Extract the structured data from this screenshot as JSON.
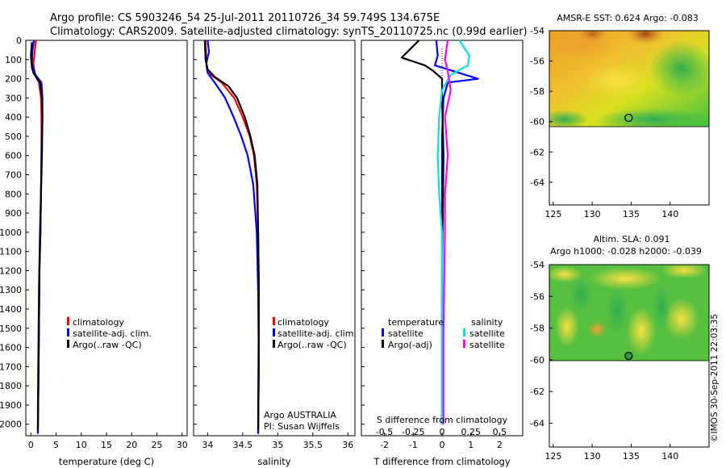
{
  "header": {
    "line1": "Argo profile: CS 5903246_54 25-Jul-2011 20110726_34 59.749S 134.675E",
    "line2": "Climatology: CARS2009. Satellite-adjusted climatology: synTS_20110725.nc (0.99d earlier)"
  },
  "colors": {
    "climatology": "#ff0000",
    "satellite": "#0000ff",
    "argo": "#000000",
    "satellite_salinity": "#00e5e5",
    "argo_salinity": "#ff00ff"
  },
  "chart_data": [
    {
      "type": "line",
      "panel": "temperature",
      "xlabel": "temperature (deg C)",
      "xlim": [
        -1,
        31
      ],
      "ylim": [
        2060,
        0
      ],
      "xticks": [
        "0",
        "5",
        "10",
        "15",
        "20",
        "25",
        "30"
      ],
      "yticks": [
        "0",
        "100",
        "200",
        "300",
        "400",
        "500",
        "600",
        "700",
        "800",
        "900",
        "1000",
        "1100",
        "1200",
        "1300",
        "1400",
        "1500",
        "1600",
        "1700",
        "1800",
        "1900",
        "2000"
      ],
      "legend": [
        "climatology",
        "satellite-adj. clim.",
        "Argo(..raw -QC)"
      ],
      "series": [
        {
          "name": "climatology",
          "color": "climatology",
          "x": [
            1.0,
            0.8,
            0.5,
            0.8,
            1.6,
            2.0,
            2.1,
            2.1,
            2.0,
            1.9,
            1.7,
            1.6,
            1.5,
            1.4,
            1.4
          ],
          "y": [
            0,
            50,
            120,
            180,
            220,
            300,
            400,
            600,
            800,
            1000,
            1200,
            1500,
            1800,
            2000,
            2050
          ]
        },
        {
          "name": "satellite-adj. clim.",
          "color": "satellite",
          "x": [
            0.6,
            0.3,
            0.2,
            0.9,
            2.1,
            2.3,
            2.3,
            2.1,
            2.0,
            1.8,
            1.6,
            1.5,
            1.4,
            1.4
          ],
          "y": [
            0,
            60,
            120,
            180,
            220,
            300,
            400,
            600,
            800,
            1000,
            1300,
            1600,
            1900,
            2050
          ]
        },
        {
          "name": "Argo(..raw -QC)",
          "color": "argo",
          "x": [
            0.2,
            0.0,
            0.2,
            0.5,
            1.8,
            2.2,
            2.3,
            2.2,
            2.0,
            1.9,
            1.7,
            1.6,
            1.5,
            1.4
          ],
          "y": [
            10,
            80,
            140,
            170,
            220,
            300,
            400,
            600,
            800,
            1000,
            1200,
            1500,
            1800,
            2030
          ]
        }
      ]
    },
    {
      "type": "line",
      "panel": "salinity",
      "xlabel": "salinity",
      "xlim": [
        33.8,
        36.1
      ],
      "ylim": [
        2060,
        0
      ],
      "xticks": [
        "34",
        "34.5",
        "35",
        "35.5",
        "36"
      ],
      "legend": [
        "climatology",
        "satellite-adj. clim.",
        "Argo(..raw -QC)"
      ],
      "annotation_lines": [
        "Argo AUSTRALIA",
        "PI: Susan Wijffels"
      ],
      "series": [
        {
          "name": "climatology",
          "color": "climatology",
          "x": [
            33.97,
            33.98,
            33.99,
            34.05,
            34.2,
            34.38,
            34.5,
            34.6,
            34.66,
            34.7,
            34.72,
            34.73,
            34.73,
            34.72
          ],
          "y": [
            0,
            80,
            150,
            180,
            220,
            300,
            400,
            500,
            600,
            750,
            1000,
            1300,
            1700,
            2050
          ]
        },
        {
          "name": "satellite-adj. clim.",
          "color": "satellite",
          "x": [
            34.0,
            34.02,
            33.98,
            34.0,
            34.1,
            34.25,
            34.37,
            34.48,
            34.57,
            34.65,
            34.7,
            34.72,
            34.73,
            34.72
          ],
          "y": [
            0,
            60,
            120,
            170,
            220,
            300,
            400,
            500,
            600,
            750,
            1000,
            1300,
            1700,
            2050
          ]
        },
        {
          "name": "Argo(..raw -QC)",
          "color": "argo",
          "x": [
            33.96,
            33.97,
            34.0,
            34.1,
            34.3,
            34.42,
            34.53,
            34.61,
            34.67,
            34.71,
            34.72,
            34.73,
            34.72
          ],
          "y": [
            0,
            100,
            150,
            190,
            240,
            300,
            400,
            500,
            600,
            750,
            1000,
            1300,
            2030
          ]
        }
      ]
    },
    {
      "type": "line",
      "panel": "difference",
      "title_bottom": "S difference from climatology",
      "xlabel": "T difference from climatology",
      "xlim": [
        -2.8,
        2.8
      ],
      "ylim": [
        2060,
        0
      ],
      "xticks": [
        "-2",
        "-1",
        "0",
        "1",
        "2"
      ],
      "top_ticks": [
        "-0.5",
        "-0.25",
        "0",
        "0.25",
        "0.5"
      ],
      "legend_temperature_title": "temperature",
      "legend_salinity_title": "salinity",
      "legend": [
        "satellite",
        "Argo(-adj)",
        "satellite",
        "Argo(-adj)"
      ],
      "series": [
        {
          "name": "satellite",
          "color": "satellite",
          "x": [
            -0.2,
            -0.15,
            -0.25,
            0.6,
            1.25,
            0.2,
            0.05,
            0.0,
            0.0,
            0.0,
            0.0
          ],
          "y": [
            0,
            80,
            130,
            170,
            200,
            220,
            300,
            500,
            1000,
            1500,
            2000
          ]
        },
        {
          "name": "Argo(-adj)",
          "color": "argo",
          "x": [
            -0.8,
            -1.4,
            -0.6,
            -0.3,
            0.0,
            0.0,
            0.05,
            0.0,
            0.0
          ],
          "y": [
            0,
            90,
            130,
            160,
            200,
            300,
            600,
            1200,
            2000
          ]
        },
        {
          "name": "satellite",
          "color": "satellite_salinity",
          "x": [
            0.6,
            0.95,
            0.9,
            0.3,
            0.0,
            -0.1,
            -0.15,
            -0.1,
            0.0,
            0.0
          ],
          "y": [
            0,
            80,
            130,
            180,
            260,
            400,
            600,
            800,
            1000,
            2000
          ]
        },
        {
          "name": "Argo(-adj)",
          "color": "argo_salinity",
          "x": [
            0.2,
            0.1,
            0.2,
            0.3,
            0.1,
            0.2,
            0.1,
            0.1,
            0.05,
            0.05
          ],
          "y": [
            0,
            100,
            160,
            260,
            400,
            600,
            800,
            1000,
            1500,
            2000
          ]
        }
      ]
    },
    {
      "type": "heatmap",
      "panel": "sst_map",
      "title": "AMSR-E SST: 0.624  Argo: -0.083",
      "xlim": [
        124.5,
        145
      ],
      "ylim": [
        -65.5,
        -54
      ],
      "xticks": [
        "125",
        "130",
        "135",
        "140"
      ],
      "yticks": [
        "-54",
        "-56",
        "-58",
        "-60",
        "-62",
        "-64"
      ],
      "data_extent_lat": [
        -54,
        -60
      ],
      "marker": {
        "lon": 134.675,
        "lat": -59.749
      }
    },
    {
      "type": "heatmap",
      "panel": "sla_map",
      "title_lines": [
        "Altim. SLA: 0.091",
        "Argo h1000: -0.028 h2000: -0.039"
      ],
      "xlim": [
        124.5,
        145
      ],
      "ylim": [
        -65.5,
        -54
      ],
      "xticks": [
        "125",
        "130",
        "135",
        "140"
      ],
      "yticks": [
        "-54",
        "-56",
        "-58",
        "-60",
        "-62",
        "-64"
      ],
      "data_extent_lat": [
        -54,
        -60
      ],
      "marker": {
        "lon": 134.675,
        "lat": -59.749
      }
    }
  ],
  "credit": "©IMOS 30-Sep-2011 22:03:35"
}
